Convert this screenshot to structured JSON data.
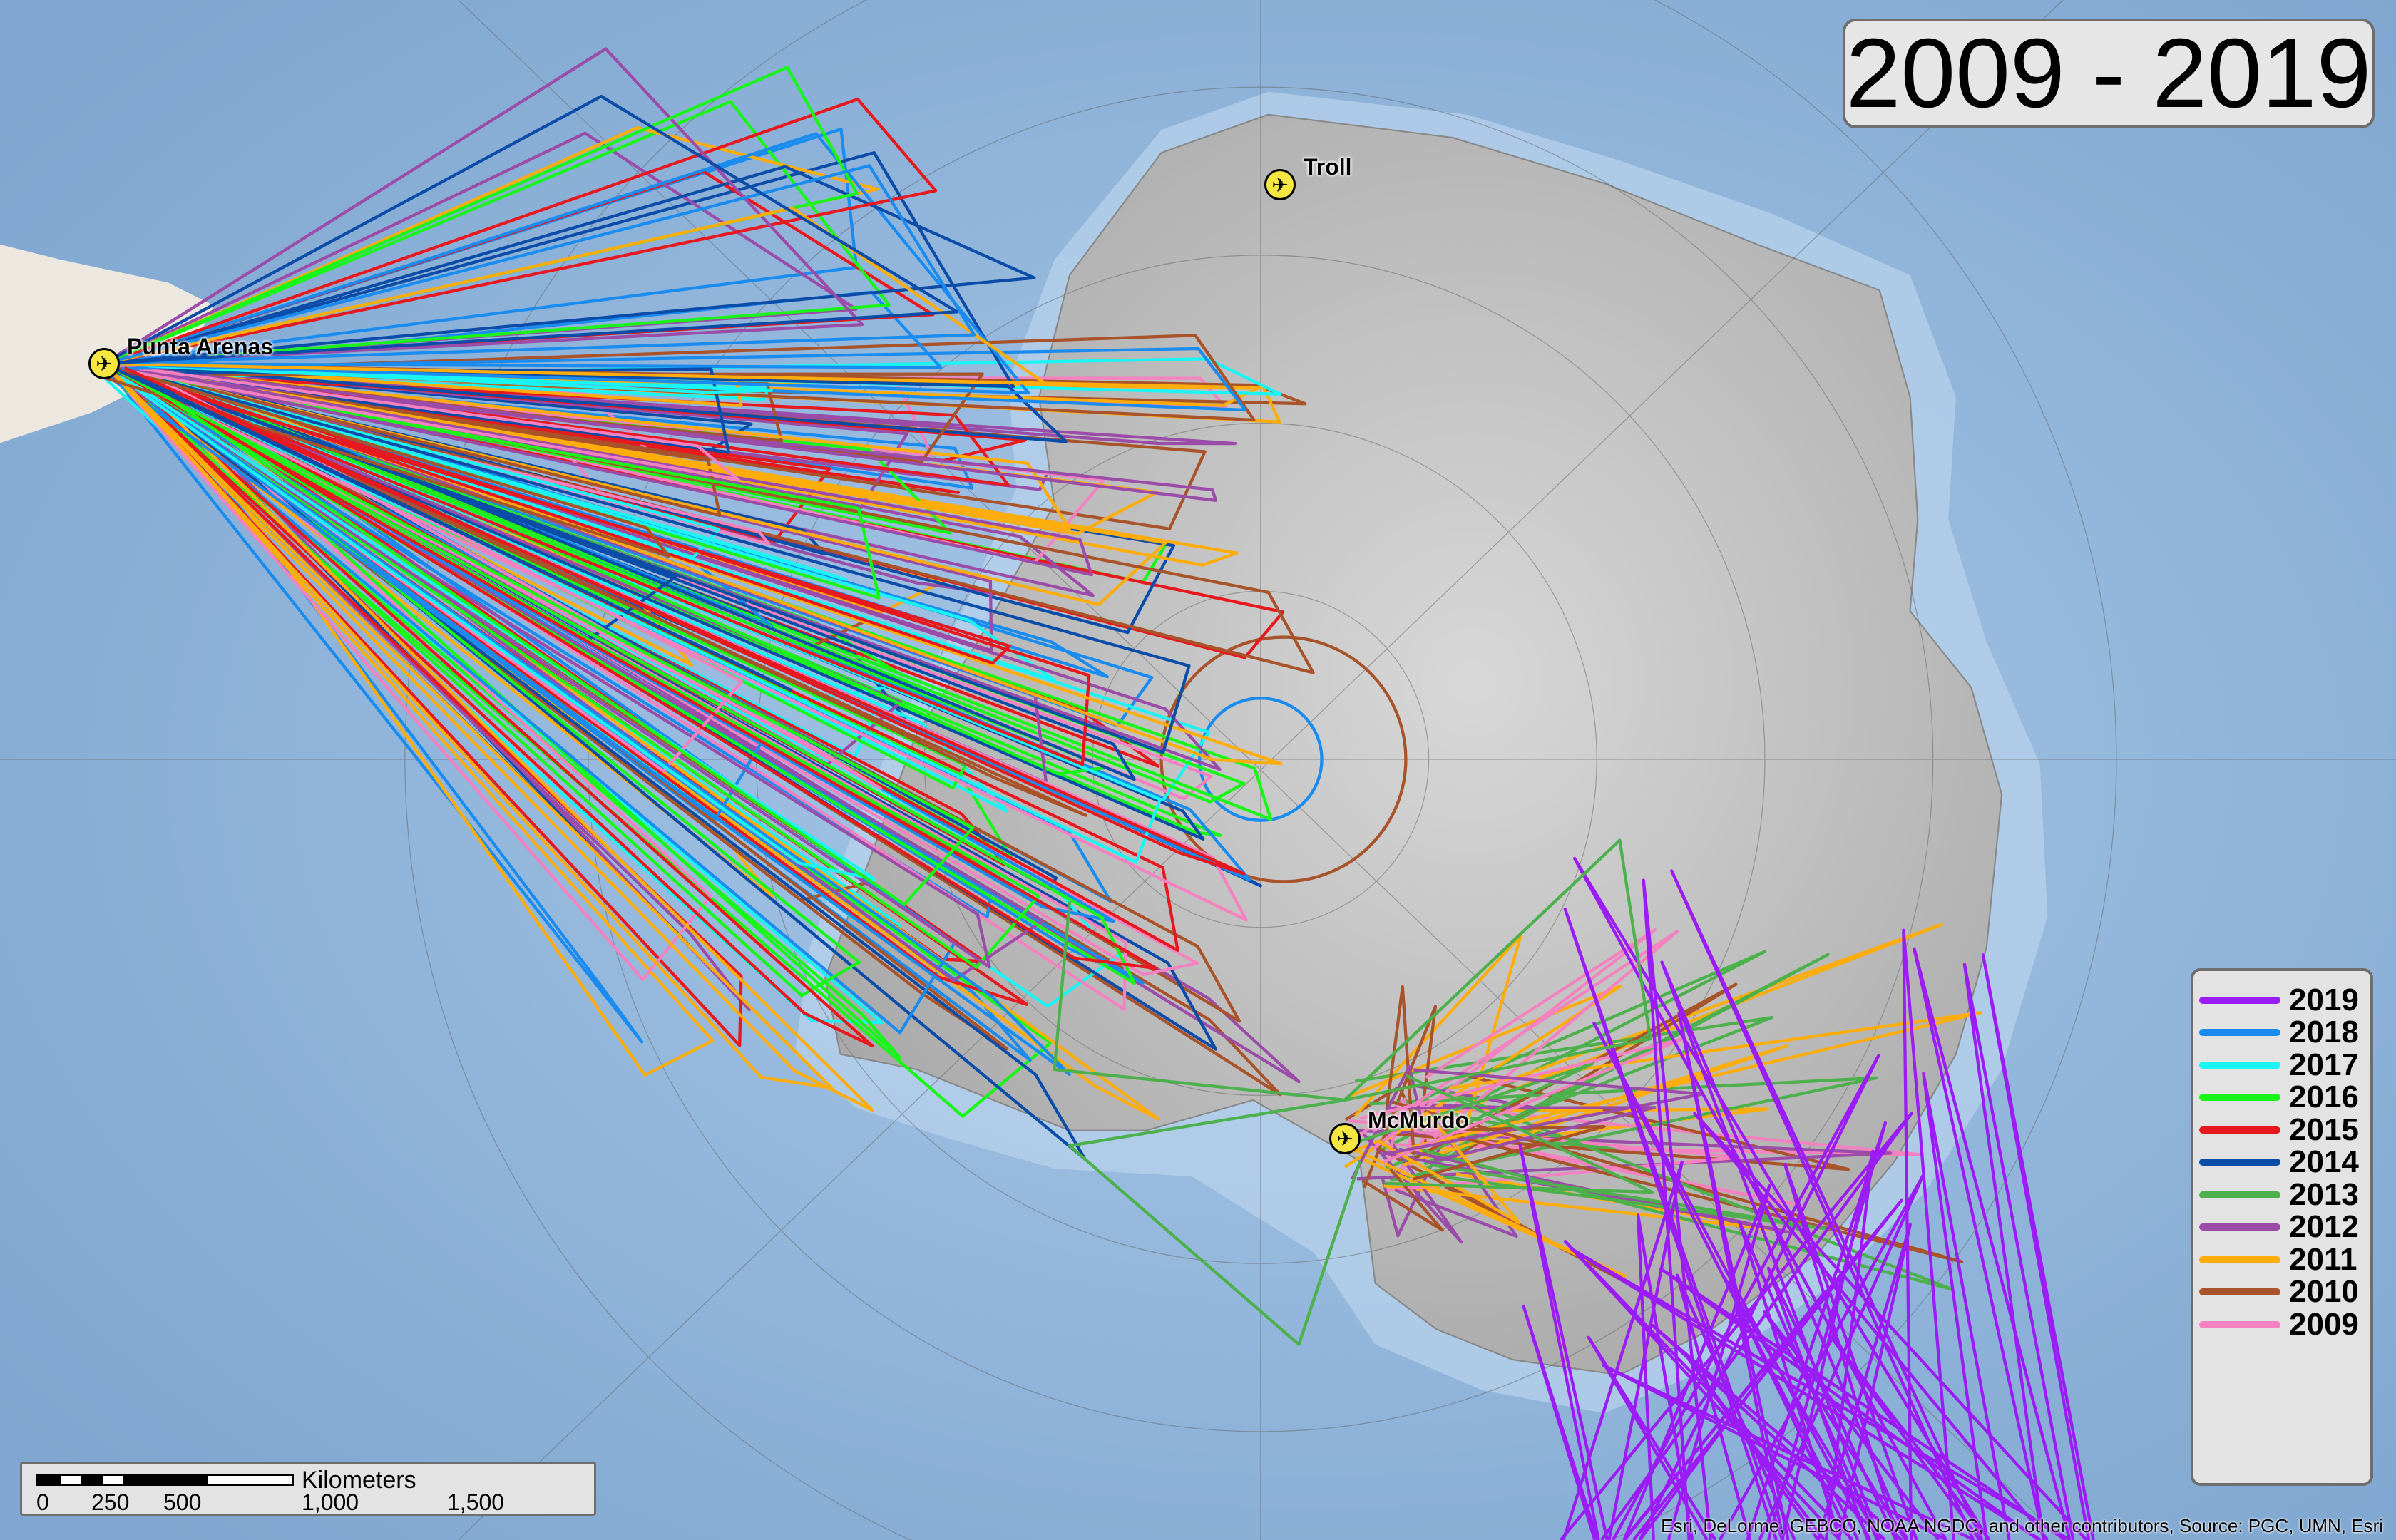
{
  "title": "2009 - 2019",
  "places": {
    "punta_arenas": "Punta Arenas",
    "troll": "Troll",
    "mcmurdo": "McMurdo"
  },
  "legend": [
    {
      "year": "2019",
      "color": "#9b1cf5"
    },
    {
      "year": "2018",
      "color": "#1a8cf0"
    },
    {
      "year": "2017",
      "color": "#19f5f5"
    },
    {
      "year": "2016",
      "color": "#19f519"
    },
    {
      "year": "2015",
      "color": "#e8191e"
    },
    {
      "year": "2014",
      "color": "#0a4ca8"
    },
    {
      "year": "2013",
      "color": "#4cb04c"
    },
    {
      "year": "2012",
      "color": "#9a4ca8"
    },
    {
      "year": "2011",
      "color": "#ffad0a"
    },
    {
      "year": "2010",
      "color": "#a8532a"
    },
    {
      "year": "2009",
      "color": "#f582c0"
    }
  ],
  "scale_bar": {
    "unit": "Kilometers",
    "ticks": [
      "0",
      "250",
      "500",
      "1,000",
      "1,500"
    ]
  },
  "attribution": "Esri, DeLorme, GEBCO, NOAA NGDC, and other contributors, Source: PGC, UMN, Esri",
  "icons": {
    "airport": "airplane-icon"
  },
  "colors": {
    "ocean": "#8fb3d9",
    "land": "#c9c9c9",
    "south_america": "#ece7df"
  }
}
